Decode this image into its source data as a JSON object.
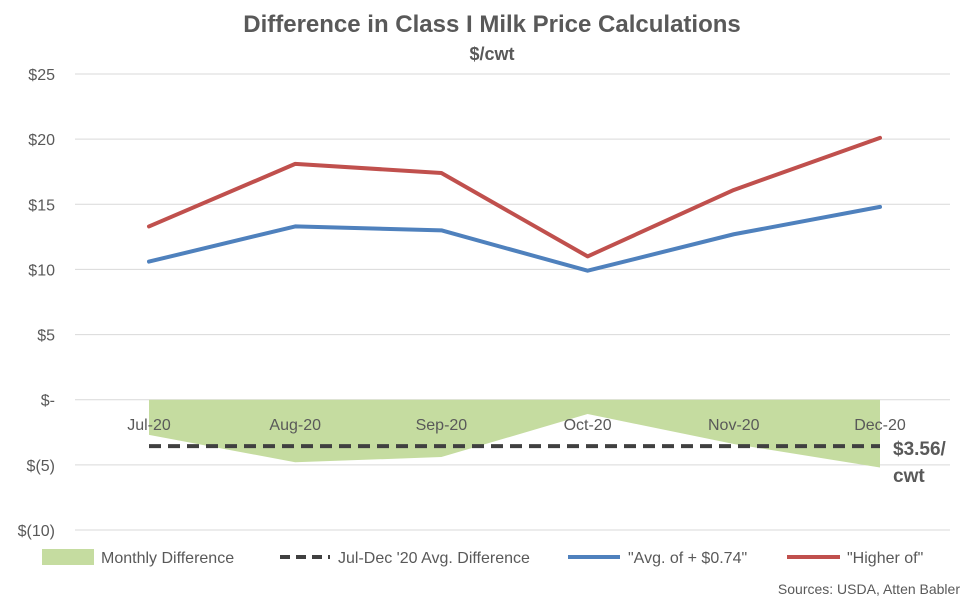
{
  "chart_data": {
    "type": "line",
    "title": "Difference in Class I Milk Price Calculations",
    "subtitle": "$/cwt",
    "categories": [
      "Jul-20",
      "Aug-20",
      "Sep-20",
      "Oct-20",
      "Nov-20",
      "Dec-20"
    ],
    "ylim": [
      -10,
      25
    ],
    "yticks": [
      25,
      20,
      15,
      10,
      5,
      0,
      -5,
      -10
    ],
    "ytick_labels": [
      "$25",
      "$20",
      "$15",
      "$10",
      "$5",
      "$-",
      "$(5)",
      "$(10)"
    ],
    "grid": true,
    "legend_position": "bottom",
    "series": [
      {
        "name": "Monthly Difference",
        "kind": "area",
        "color": "#c5dca0",
        "values": [
          -2.7,
          -4.8,
          -4.4,
          -1.1,
          -3.4,
          -5.2
        ]
      },
      {
        "name": "Jul-Dec '20 Avg. Difference",
        "kind": "dashed-line",
        "color": "#404040",
        "values": [
          -3.56,
          -3.56,
          -3.56,
          -3.56,
          -3.56,
          -3.56
        ]
      },
      {
        "name": "\"Avg. of + $0.74\"",
        "kind": "line",
        "color": "#4f81bd",
        "values": [
          10.6,
          13.3,
          13.0,
          9.9,
          12.7,
          14.8
        ]
      },
      {
        "name": "\"Higher of\"",
        "kind": "line",
        "color": "#c0504d",
        "values": [
          13.3,
          18.1,
          17.4,
          11.0,
          16.1,
          20.1
        ]
      }
    ],
    "annotation": {
      "line1": "$3.56/",
      "line2": "cwt"
    },
    "source": "Sources: USDA, Atten Babler"
  }
}
